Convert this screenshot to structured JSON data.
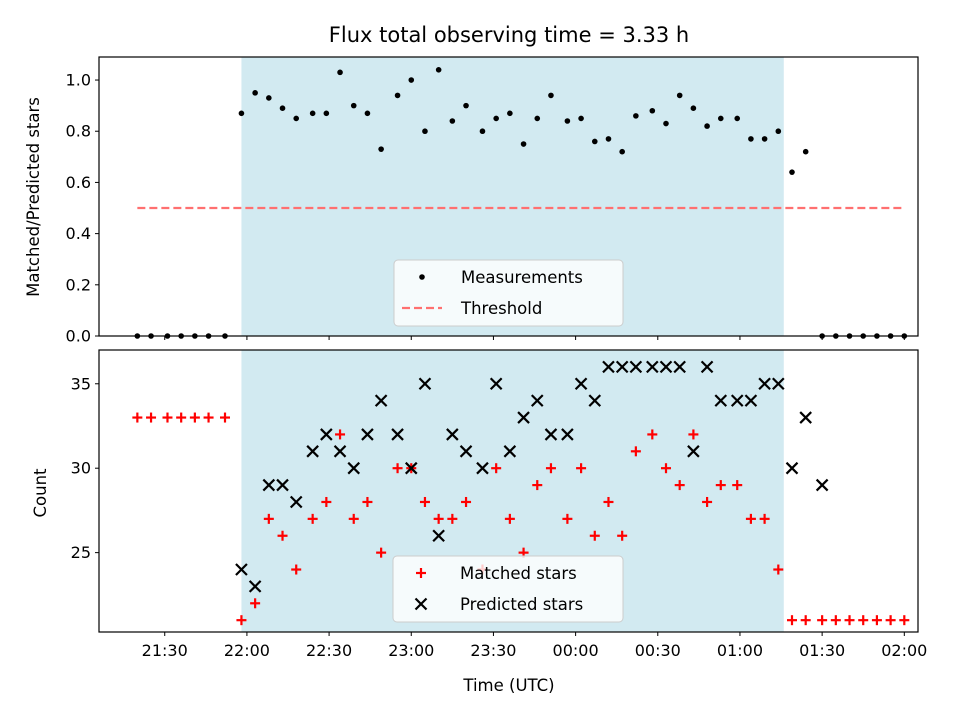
{
  "chart_data": [
    {
      "type": "scatter",
      "title": "Flux total observing time = 3.33 h",
      "xlabel": "",
      "ylabel": "Matched/Predicted stars",
      "ylim": [
        0,
        1.09
      ],
      "yticks": [
        "0.0",
        "0.2",
        "0.4",
        "0.6",
        "0.8",
        "1.0"
      ],
      "observing_window": {
        "start": "21:58",
        "end": "01:16",
        "color": "#add8e6"
      },
      "legend_position": "lower-center",
      "series": [
        {
          "name": "Measurements",
          "color": "#000000",
          "points": [
            [
              "21:20",
              0.0
            ],
            [
              "21:25",
              0.0
            ],
            [
              "21:31",
              0.0
            ],
            [
              "21:36",
              0.0
            ],
            [
              "21:41",
              0.0
            ],
            [
              "21:46",
              0.0
            ],
            [
              "21:52",
              0.0
            ],
            [
              "21:58",
              0.87
            ],
            [
              "22:03",
              0.95
            ],
            [
              "22:08",
              0.93
            ],
            [
              "22:13",
              0.89
            ],
            [
              "22:18",
              0.85
            ],
            [
              "22:24",
              0.87
            ],
            [
              "22:29",
              0.87
            ],
            [
              "22:34",
              1.03
            ],
            [
              "22:39",
              0.9
            ],
            [
              "22:44",
              0.87
            ],
            [
              "22:49",
              0.73
            ],
            [
              "22:55",
              0.94
            ],
            [
              "23:00",
              1.0
            ],
            [
              "23:05",
              0.8
            ],
            [
              "23:10",
              1.04
            ],
            [
              "23:15",
              0.84
            ],
            [
              "23:20",
              0.9
            ],
            [
              "23:26",
              0.8
            ],
            [
              "23:31",
              0.85
            ],
            [
              "23:36",
              0.87
            ],
            [
              "23:41",
              0.75
            ],
            [
              "23:46",
              0.85
            ],
            [
              "23:51",
              0.94
            ],
            [
              "23:57",
              0.84
            ],
            [
              "00:02",
              0.85
            ],
            [
              "00:07",
              0.76
            ],
            [
              "00:12",
              0.77
            ],
            [
              "00:17",
              0.72
            ],
            [
              "00:22",
              0.86
            ],
            [
              "00:28",
              0.88
            ],
            [
              "00:33",
              0.83
            ],
            [
              "00:38",
              0.94
            ],
            [
              "00:43",
              0.89
            ],
            [
              "00:48",
              0.82
            ],
            [
              "00:53",
              0.85
            ],
            [
              "00:59",
              0.85
            ],
            [
              "01:04",
              0.77
            ],
            [
              "01:09",
              0.77
            ],
            [
              "01:14",
              0.8
            ],
            [
              "01:19",
              0.64
            ],
            [
              "01:24",
              0.72
            ],
            [
              "01:30",
              0.0
            ],
            [
              "01:35",
              0.0
            ],
            [
              "01:40",
              0.0
            ],
            [
              "01:45",
              0.0
            ],
            [
              "01:50",
              0.0
            ],
            [
              "01:55",
              0.0
            ],
            [
              "02:00",
              0.0
            ]
          ]
        },
        {
          "name": "Threshold",
          "color": "#ff7070",
          "style": "dashed",
          "points": [
            [
              "21:20",
              0.5
            ],
            [
              "02:00",
              0.5
            ]
          ]
        }
      ]
    },
    {
      "type": "scatter",
      "title": "",
      "xlabel": "Time (UTC)",
      "ylabel": "Count",
      "ylim": [
        20.3,
        37.0
      ],
      "yticks": [
        "25",
        "30",
        "35"
      ],
      "xlim": [
        "21:06",
        "02:05"
      ],
      "xticks": [
        "21:30",
        "22:00",
        "22:30",
        "23:00",
        "23:30",
        "00:00",
        "00:30",
        "01:00",
        "01:30",
        "02:00"
      ],
      "observing_window": {
        "start": "21:58",
        "end": "01:16",
        "color": "#add8e6"
      },
      "legend_position": "lower-center",
      "series": [
        {
          "name": "Matched stars",
          "color": "#ff0000",
          "marker": "plus",
          "points": [
            [
              "21:20",
              33
            ],
            [
              "21:25",
              33
            ],
            [
              "21:31",
              33
            ],
            [
              "21:36",
              33
            ],
            [
              "21:41",
              33
            ],
            [
              "21:46",
              33
            ],
            [
              "21:52",
              33
            ],
            [
              "21:58",
              21
            ],
            [
              "22:03",
              22
            ],
            [
              "22:08",
              27
            ],
            [
              "22:13",
              26
            ],
            [
              "22:18",
              24
            ],
            [
              "22:24",
              27
            ],
            [
              "22:29",
              28
            ],
            [
              "22:34",
              32
            ],
            [
              "22:39",
              27
            ],
            [
              "22:44",
              28
            ],
            [
              "22:49",
              25
            ],
            [
              "22:55",
              30
            ],
            [
              "23:00",
              30
            ],
            [
              "23:05",
              28
            ],
            [
              "23:10",
              27
            ],
            [
              "23:15",
              27
            ],
            [
              "23:20",
              28
            ],
            [
              "23:26",
              24
            ],
            [
              "23:31",
              30
            ],
            [
              "23:36",
              27
            ],
            [
              "23:41",
              25
            ],
            [
              "23:46",
              29
            ],
            [
              "23:51",
              30
            ],
            [
              "23:57",
              27
            ],
            [
              "00:02",
              30
            ],
            [
              "00:07",
              26
            ],
            [
              "00:12",
              28
            ],
            [
              "00:17",
              26
            ],
            [
              "00:22",
              31
            ],
            [
              "00:28",
              32
            ],
            [
              "00:33",
              30
            ],
            [
              "00:38",
              29
            ],
            [
              "00:43",
              32
            ],
            [
              "00:48",
              28
            ],
            [
              "00:53",
              29
            ],
            [
              "00:59",
              29
            ],
            [
              "01:04",
              27
            ],
            [
              "01:09",
              27
            ],
            [
              "01:14",
              24
            ],
            [
              "01:19",
              21
            ],
            [
              "01:24",
              21
            ],
            [
              "01:30",
              21
            ],
            [
              "01:35",
              21
            ],
            [
              "01:40",
              21
            ],
            [
              "01:45",
              21
            ],
            [
              "01:50",
              21
            ],
            [
              "01:55",
              21
            ],
            [
              "02:00",
              21
            ]
          ]
        },
        {
          "name": "Predicted stars",
          "color": "#000000",
          "marker": "x",
          "points": [
            [
              "21:58",
              24
            ],
            [
              "22:03",
              23
            ],
            [
              "22:08",
              29
            ],
            [
              "22:13",
              29
            ],
            [
              "22:18",
              28
            ],
            [
              "22:24",
              31
            ],
            [
              "22:29",
              32
            ],
            [
              "22:34",
              31
            ],
            [
              "22:39",
              30
            ],
            [
              "22:44",
              32
            ],
            [
              "22:49",
              34
            ],
            [
              "22:55",
              32
            ],
            [
              "23:00",
              30
            ],
            [
              "23:05",
              35
            ],
            [
              "23:10",
              26
            ],
            [
              "23:15",
              32
            ],
            [
              "23:20",
              31
            ],
            [
              "23:26",
              30
            ],
            [
              "23:31",
              35
            ],
            [
              "23:36",
              31
            ],
            [
              "23:41",
              33
            ],
            [
              "23:46",
              34
            ],
            [
              "23:51",
              32
            ],
            [
              "23:57",
              32
            ],
            [
              "00:02",
              35
            ],
            [
              "00:07",
              34
            ],
            [
              "00:12",
              36
            ],
            [
              "00:17",
              36
            ],
            [
              "00:22",
              36
            ],
            [
              "00:28",
              36
            ],
            [
              "00:33",
              36
            ],
            [
              "00:38",
              36
            ],
            [
              "00:43",
              31
            ],
            [
              "00:48",
              36
            ],
            [
              "00:53",
              34
            ],
            [
              "00:59",
              34
            ],
            [
              "01:04",
              34
            ],
            [
              "01:09",
              35
            ],
            [
              "01:14",
              35
            ],
            [
              "01:19",
              30
            ],
            [
              "01:24",
              33
            ],
            [
              "01:30",
              29
            ]
          ]
        }
      ]
    }
  ]
}
